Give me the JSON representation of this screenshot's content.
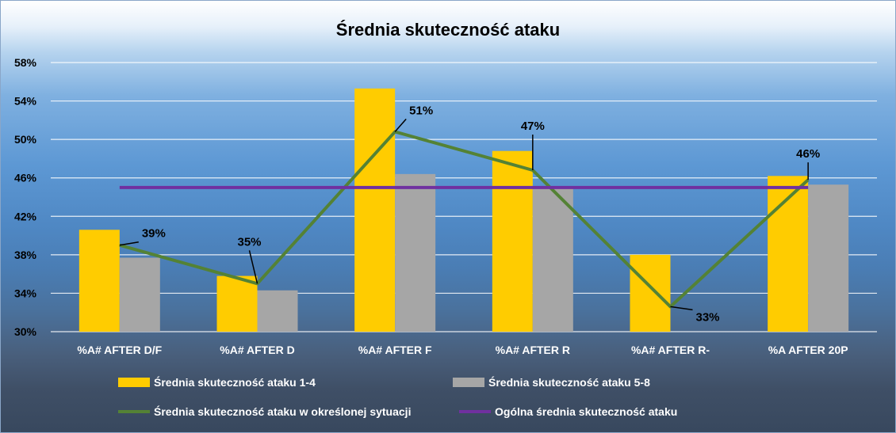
{
  "chart_data": {
    "type": "bar",
    "title": "Średnia skuteczność ataku",
    "categories": [
      "%A# AFTER D/F",
      "%A# AFTER D",
      "%A# AFTER F",
      "%A# AFTER  R",
      "%A# AFTER  R-",
      "%A AFTER 20P"
    ],
    "ylim": [
      30,
      58
    ],
    "yticks": [
      "30%",
      "34%",
      "38%",
      "42%",
      "46%",
      "50%",
      "54%",
      "58%"
    ],
    "ytick_values": [
      30,
      34,
      38,
      42,
      46,
      50,
      54,
      58
    ],
    "series": [
      {
        "name": "Średnia skuteczność ataku 1-4",
        "type": "bar",
        "color": "#ffcc00",
        "values": [
          40.6,
          35.8,
          55.3,
          48.8,
          38.0,
          46.2
        ]
      },
      {
        "name": "Średnia skuteczność ataku 5-8",
        "type": "bar",
        "color": "#a6a6a6",
        "values": [
          37.7,
          34.3,
          46.4,
          45.0,
          null,
          45.3
        ]
      },
      {
        "name": "Średnia skuteczność ataku w określonej sytuacji",
        "type": "line",
        "color": "#548235",
        "values": [
          39.0,
          35.0,
          50.8,
          46.8,
          32.6,
          45.8
        ],
        "labels": [
          "39%",
          "35%",
          "51%",
          "47%",
          "33%",
          "46%"
        ]
      },
      {
        "name": "Ogólna średnia skuteczność ataku",
        "type": "line",
        "color": "#7030a0",
        "values": [
          45,
          45,
          45,
          45,
          45,
          45
        ]
      }
    ],
    "legend_position": "bottom",
    "grid": true
  }
}
